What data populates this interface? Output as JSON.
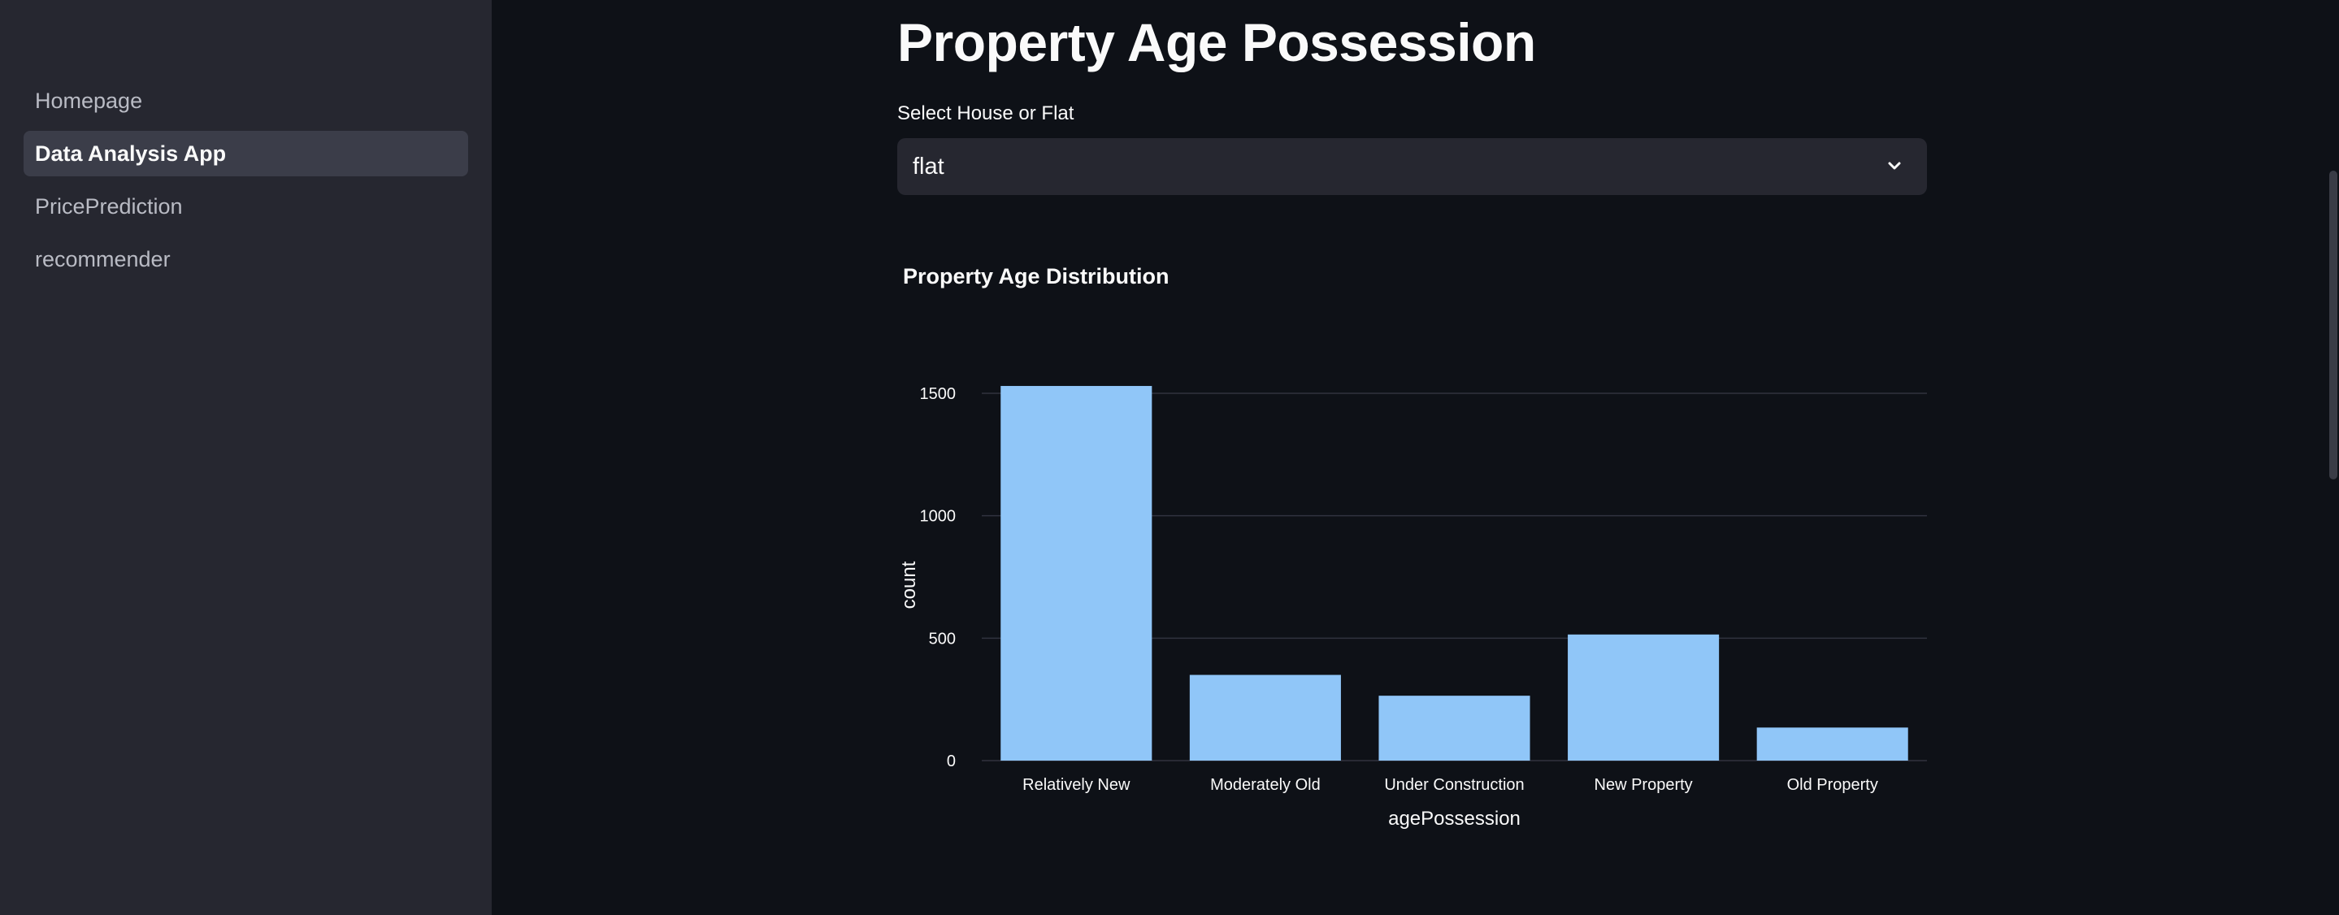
{
  "sidebar": {
    "items": [
      {
        "label": "Homepage",
        "active": false
      },
      {
        "label": "Data Analysis App",
        "active": true
      },
      {
        "label": "PricePrediction",
        "active": false
      },
      {
        "label": "recommender",
        "active": false
      }
    ]
  },
  "main": {
    "title": "Property Age Possession",
    "select": {
      "label": "Select House or Flat",
      "value": "flat",
      "icon": "chevron-down-icon"
    }
  },
  "colors": {
    "background": "#0e1117",
    "sidebar": "#262730",
    "bar": "#90c6f8",
    "gridline": "#31333f"
  },
  "chart_data": {
    "type": "bar",
    "title": "Property Age Distribution",
    "xlabel": "agePossession",
    "ylabel": "count",
    "categories": [
      "Relatively New",
      "Moderately Old",
      "Under Construction",
      "New Property",
      "Old Property"
    ],
    "values": [
      1530,
      350,
      265,
      515,
      135
    ],
    "ylim": [
      0,
      1500
    ],
    "yticks": [
      0,
      500,
      1000,
      1500
    ],
    "grid": true,
    "legend": "none"
  }
}
